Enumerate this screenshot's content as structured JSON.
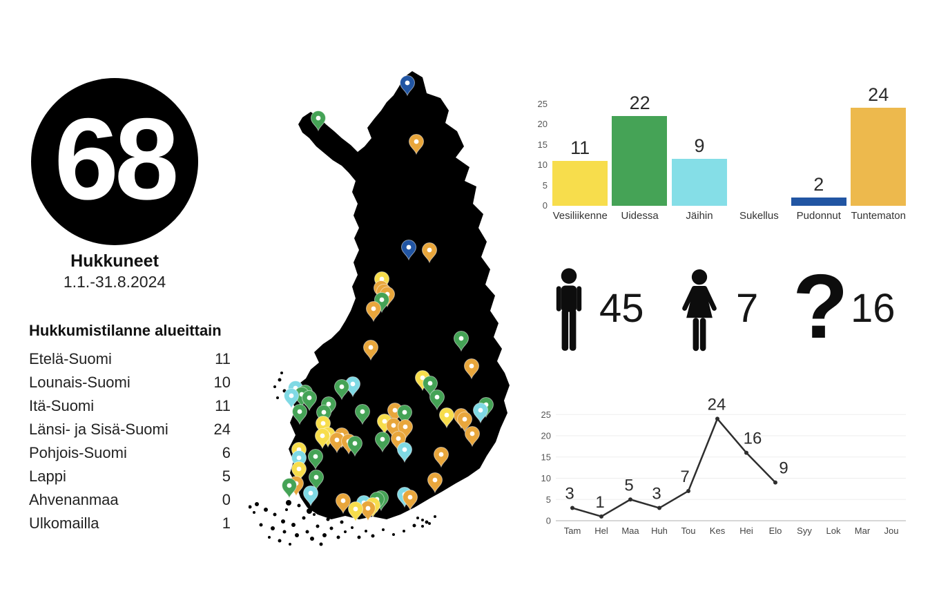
{
  "summary": {
    "total": "68",
    "label": "Hukkuneet",
    "period": "1.1.-31.8.2024"
  },
  "regions": {
    "title": "Hukkumistilanne alueittain",
    "rows": [
      {
        "label": "Etelä-Suomi",
        "value": "11"
      },
      {
        "label": "Lounais-Suomi",
        "value": "10"
      },
      {
        "label": "Itä-Suomi",
        "value": "11"
      },
      {
        "label": "Länsi- ja Sisä-Suomi",
        "value": "24"
      },
      {
        "label": "Pohjois-Suomi",
        "value": "6"
      },
      {
        "label": "Lappi",
        "value": "5"
      },
      {
        "label": "Ahvenanmaa",
        "value": "0"
      },
      {
        "label": "Ulkomailla",
        "value": "1"
      }
    ]
  },
  "chart_data": [
    {
      "type": "bar",
      "title": "",
      "categories": [
        "Vesiliikenne",
        "Uidessa",
        "Jäihin",
        "Sukellus",
        "Pudonnut",
        "Tuntematon"
      ],
      "values": [
        11,
        22,
        9,
        0,
        2,
        24
      ],
      "display_heights": [
        11,
        22,
        11.5,
        0,
        2,
        24
      ],
      "bar_colors": [
        "#F7DD4C",
        "#45A356",
        "#85DEE7",
        null,
        "#2155A3",
        "#EDB94D"
      ],
      "yticks": [
        0,
        5,
        10,
        15,
        20,
        25
      ],
      "ylim": [
        0,
        25
      ],
      "grid": false,
      "legend": "none"
    },
    {
      "type": "line",
      "title": "",
      "categories": [
        "Tam",
        "Hel",
        "Maa",
        "Huh",
        "Tou",
        "Kes",
        "Hei",
        "Elo",
        "Syy",
        "Lok",
        "Mar",
        "Jou"
      ],
      "values": [
        3,
        1,
        5,
        3,
        7,
        24,
        16,
        9
      ],
      "line_color": "#2e2e2e",
      "yticks": [
        0,
        5,
        10,
        15,
        20,
        25
      ],
      "ylim": [
        0,
        25
      ],
      "grid": true,
      "legend": "none"
    }
  ],
  "genders": [
    {
      "icon": "male-icon",
      "value": "45"
    },
    {
      "icon": "female-icon",
      "value": "7"
    },
    {
      "icon": "question-mark-icon",
      "value": "16"
    }
  ],
  "map": {
    "land_color": "#000000",
    "pin_palette": {
      "yellow": "#F7DD4C",
      "green": "#45A356",
      "cyan": "#7FD9E4",
      "blue": "#2155A3",
      "orange": "#E8A63C"
    },
    "pins": [
      [
        230,
        32,
        "blue"
      ],
      [
        232,
        270,
        "blue"
      ],
      [
        193,
        316,
        "yellow"
      ],
      [
        252,
        459,
        "yellow"
      ],
      [
        287,
        513,
        "yellow"
      ],
      [
        197,
        522,
        "yellow"
      ],
      [
        108,
        525,
        "yellow"
      ],
      [
        115,
        541,
        "yellow"
      ],
      [
        107,
        543,
        "yellow"
      ],
      [
        73,
        563,
        "yellow"
      ],
      [
        73,
        591,
        "yellow"
      ],
      [
        155,
        649,
        "yellow"
      ],
      [
        180,
        643,
        "yellow"
      ],
      [
        101,
        83,
        "green"
      ],
      [
        193,
        346,
        "green"
      ],
      [
        308,
        402,
        "green"
      ],
      [
        263,
        467,
        "green"
      ],
      [
        273,
        487,
        "green"
      ],
      [
        77,
        483,
        "green"
      ],
      [
        88,
        488,
        "green"
      ],
      [
        135,
        472,
        "green"
      ],
      [
        116,
        497,
        "green"
      ],
      [
        74,
        508,
        "green"
      ],
      [
        165,
        508,
        "green"
      ],
      [
        344,
        498,
        "green"
      ],
      [
        226,
        509,
        "green"
      ],
      [
        194,
        548,
        "green"
      ],
      [
        97,
        573,
        "green"
      ],
      [
        98,
        603,
        "green"
      ],
      [
        59,
        615,
        "green"
      ],
      [
        192,
        633,
        "green"
      ],
      [
        154,
        554,
        "green"
      ],
      [
        82,
        480,
        "green"
      ],
      [
        186,
        635,
        "green"
      ],
      [
        109,
        509,
        "green"
      ],
      [
        68,
        474,
        "cyan"
      ],
      [
        62,
        485,
        "cyan"
      ],
      [
        151,
        468,
        "cyan"
      ],
      [
        336,
        506,
        "cyan"
      ],
      [
        226,
        563,
        "cyan"
      ],
      [
        73,
        575,
        "cyan"
      ],
      [
        90,
        626,
        "cyan"
      ],
      [
        167,
        640,
        "cyan"
      ],
      [
        226,
        628,
        "cyan"
      ],
      [
        243,
        117,
        "orange"
      ],
      [
        262,
        274,
        "orange"
      ],
      [
        192,
        329,
        "orange"
      ],
      [
        201,
        338,
        "orange"
      ],
      [
        181,
        359,
        "orange"
      ],
      [
        177,
        415,
        "orange"
      ],
      [
        323,
        442,
        "orange"
      ],
      [
        308,
        514,
        "orange"
      ],
      [
        324,
        540,
        "orange"
      ],
      [
        212,
        506,
        "orange"
      ],
      [
        210,
        528,
        "orange"
      ],
      [
        227,
        530,
        "orange"
      ],
      [
        217,
        547,
        "orange"
      ],
      [
        128,
        549,
        "orange"
      ],
      [
        135,
        542,
        "orange"
      ],
      [
        145,
        551,
        "orange"
      ],
      [
        279,
        570,
        "orange"
      ],
      [
        69,
        612,
        "orange"
      ],
      [
        270,
        607,
        "orange"
      ],
      [
        137,
        637,
        "orange"
      ],
      [
        173,
        648,
        "orange"
      ],
      [
        234,
        632,
        "orange"
      ],
      [
        313,
        519,
        "orange"
      ],
      [
        196,
        334,
        "orange"
      ]
    ]
  }
}
